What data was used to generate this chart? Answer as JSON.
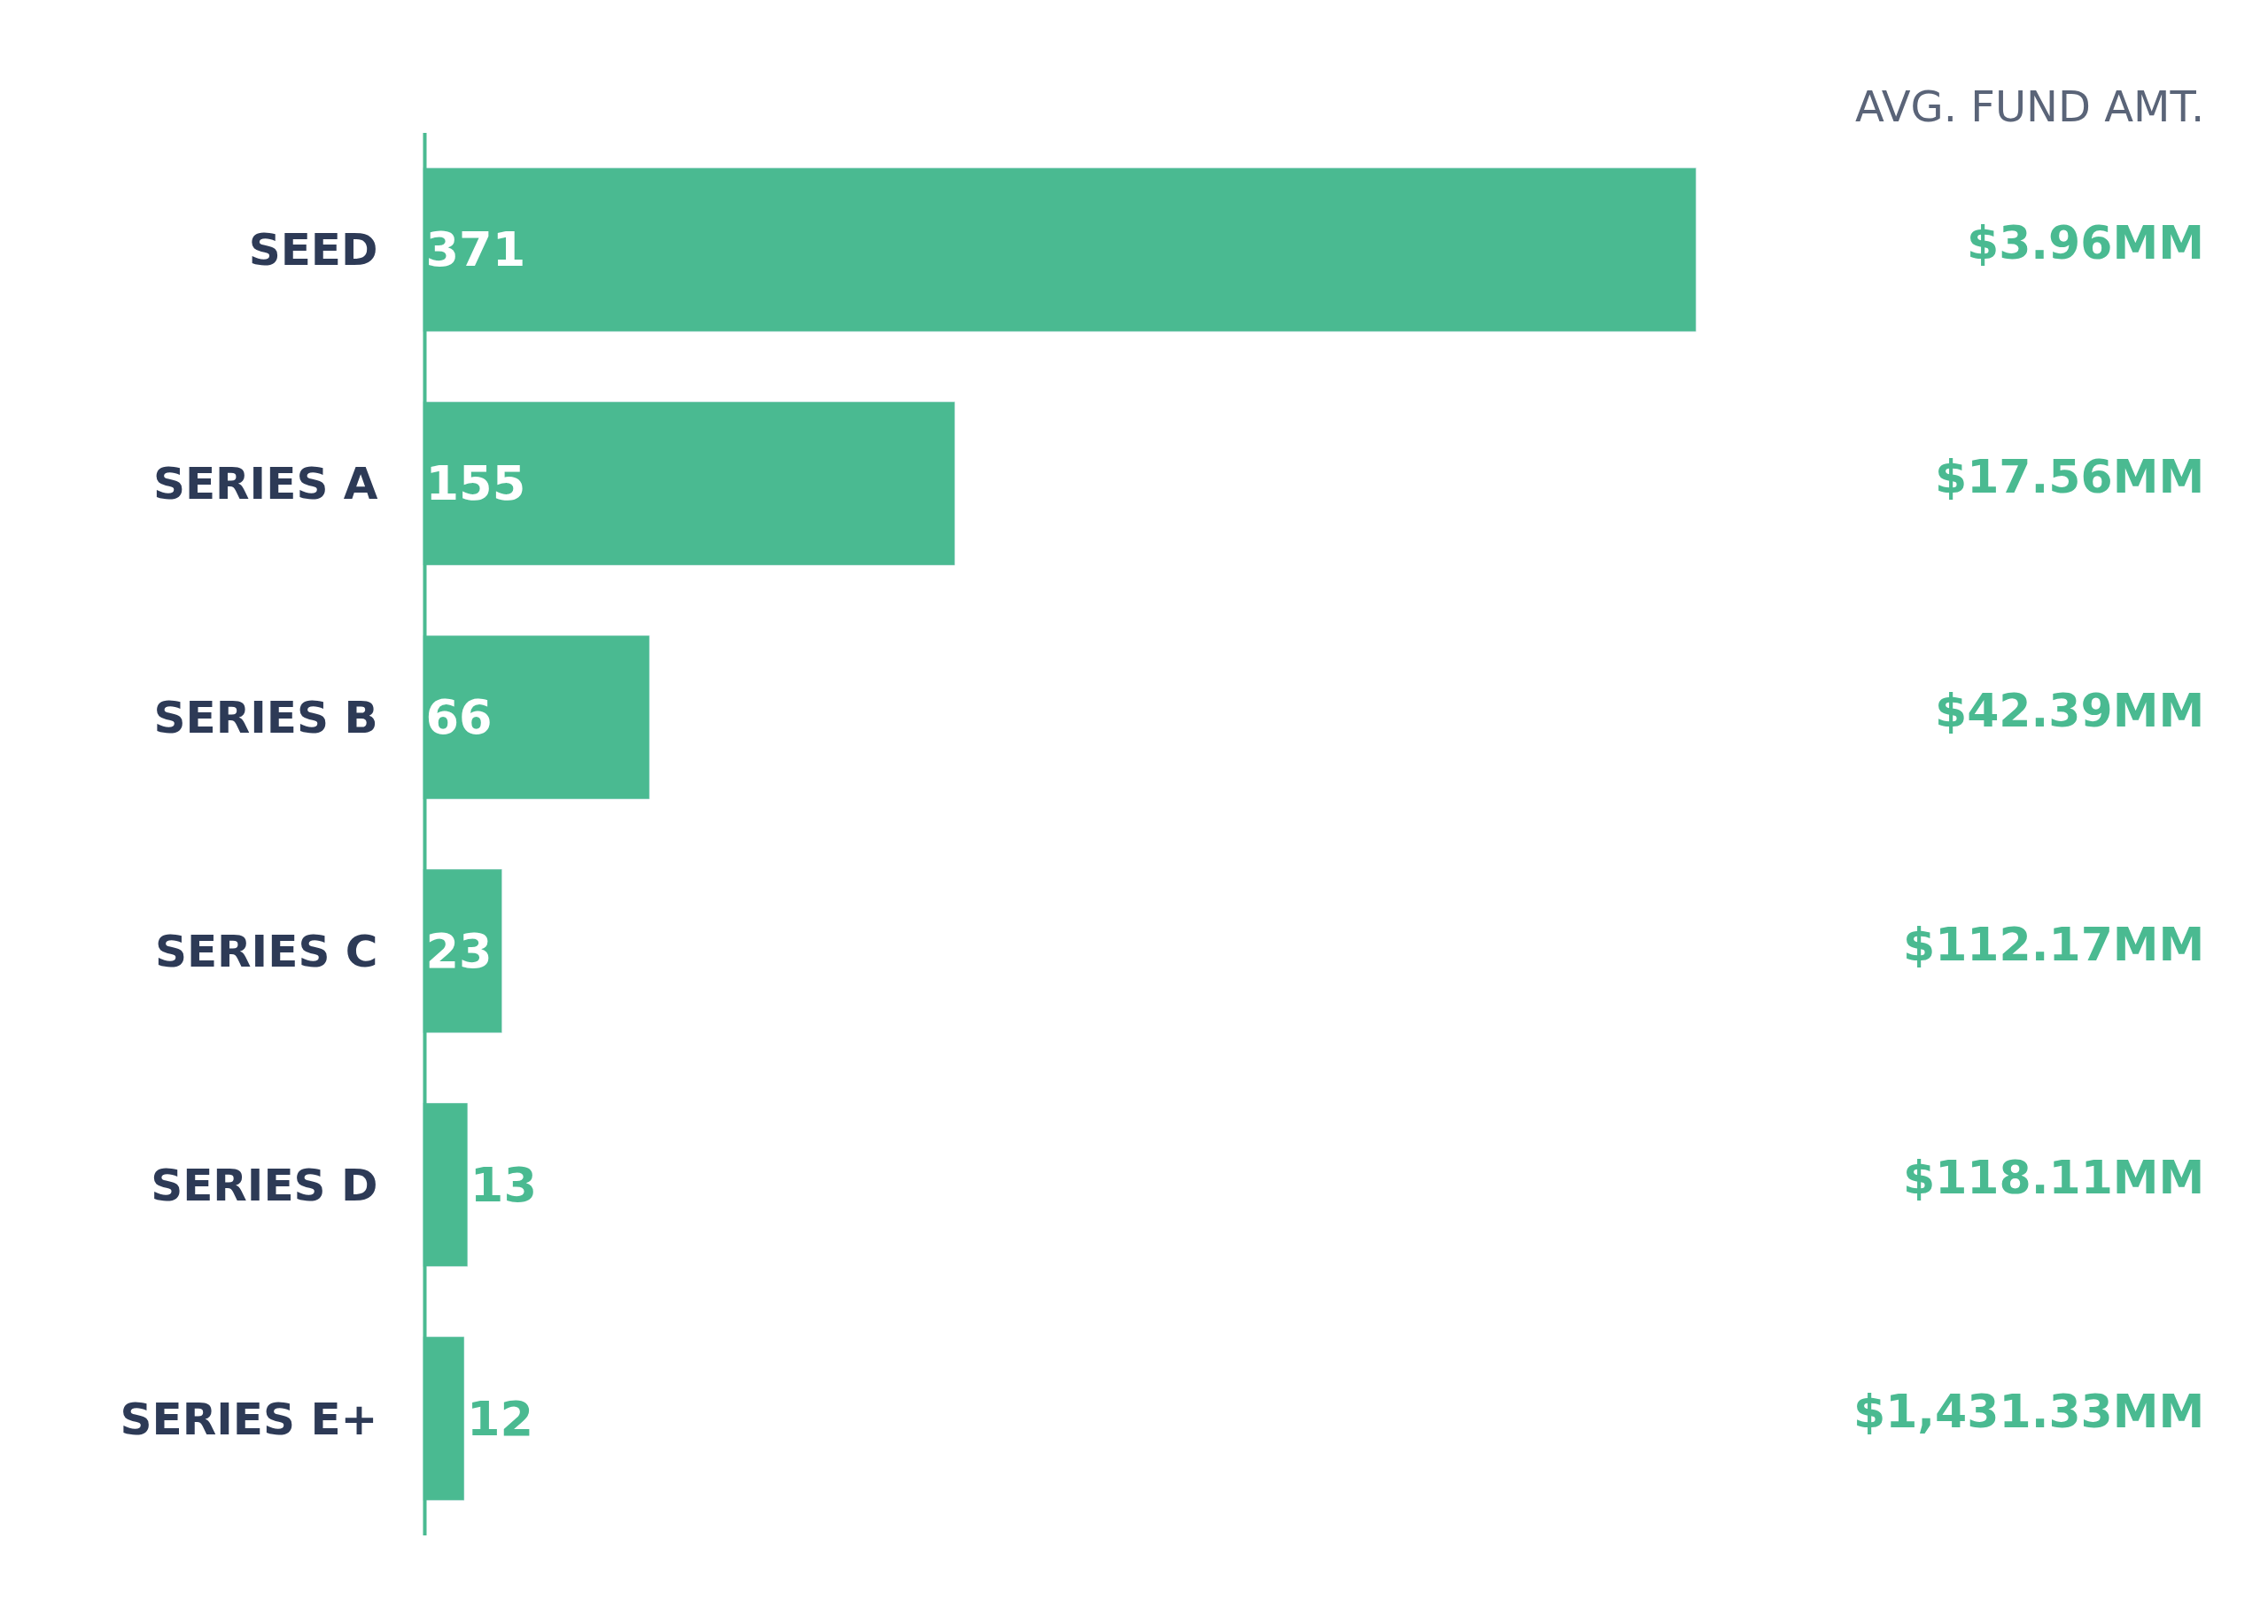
{
  "chart_data": {
    "type": "bar",
    "orientation": "horizontal",
    "categories": [
      "SEED",
      "SERIES A",
      "SERIES B",
      "SERIES C",
      "SERIES D",
      "SERIES E+"
    ],
    "values": [
      371,
      155,
      66,
      23,
      13,
      12
    ],
    "color": "#4aba91",
    "data_labels": true,
    "legend": false,
    "annotations": [
      "AVG. FUND AMT.",
      "$3.96MM",
      "$17.56MM",
      "$42.39MM",
      "$112.17MM",
      "$118.11MM",
      "$1,431.33MM"
    ]
  }
}
